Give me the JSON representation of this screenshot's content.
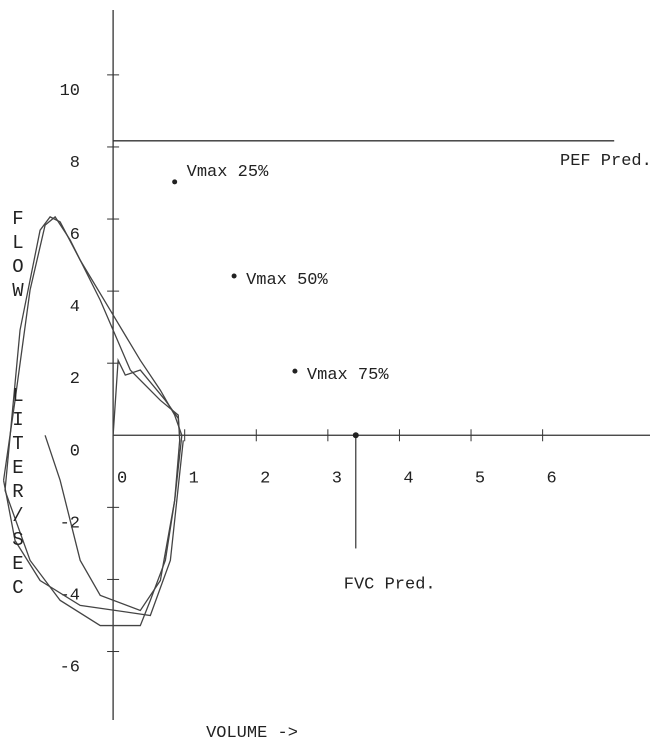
{
  "chart_data": {
    "type": "line",
    "xlabel": "VOLUME ->",
    "ylabel": [
      "FLOW",
      "LITER/SEC"
    ],
    "xlim": [
      -1.58,
      7.5
    ],
    "ylim": [
      -7.9,
      11.8
    ],
    "xticks": [
      0,
      1,
      2,
      3,
      4,
      5,
      6
    ],
    "yticks": [
      -6,
      -4,
      -2,
      0,
      2,
      4,
      6,
      8,
      10
    ],
    "series": [
      {
        "color": "#444",
        "x": [
          -1.51,
          -1.3,
          -1.02,
          -0.88,
          -0.74,
          -0.46,
          -0.04,
          0.38,
          0.66,
          0.86,
          0.96,
          0.86,
          0.73,
          0.52,
          0.38,
          -0.18,
          -0.74,
          -1.16,
          -1.51
        ],
        "values": [
          -1.53,
          2.92,
          5.69,
          6.06,
          5.92,
          4.86,
          3.47,
          2.08,
          1.25,
          0.56,
          0,
          -1.81,
          -3.47,
          -4.58,
          -5.28,
          -5.28,
          -4.58,
          -3.47,
          -1.53
        ]
      },
      {
        "color": "#444",
        "x": [
          -0.95,
          -0.74,
          -0.46,
          -0.18,
          0.38,
          0.66,
          0.86,
          0.93,
          0.91,
          0.66,
          0.24,
          -0.18,
          -0.6,
          -0.81,
          -0.95,
          -1.16,
          -1.37,
          -1.53
        ],
        "values": [
          0,
          -1.25,
          -3.47,
          -4.44,
          -4.86,
          -4.03,
          -1.81,
          -0.14,
          0.56,
          0.97,
          1.81,
          3.75,
          5.42,
          6.06,
          5.83,
          4.03,
          0.97,
          -1.25
        ]
      },
      {
        "color": "#444",
        "x": [
          0,
          0.07,
          0.17,
          0.38,
          0.73,
          0.91,
          0.93
        ],
        "values": [
          0,
          2.08,
          1.67,
          1.81,
          0.97,
          0.47,
          0
        ]
      },
      {
        "color": "#444",
        "x": [
          -1.53,
          -1.37,
          -1.02,
          -0.46,
          0.52,
          0.8,
          0.98
        ],
        "values": [
          -1.25,
          -2.92,
          -4.03,
          -4.72,
          -5.0,
          -3.47,
          -0.14
        ]
      }
    ],
    "points": [
      {
        "label": "Vmax 25%",
        "x": 0.86,
        "y": 7.03
      },
      {
        "label": "Vmax 50%",
        "x": 1.69,
        "y": 4.42
      },
      {
        "label": "Vmax 75%",
        "x": 2.54,
        "y": 1.78
      }
    ],
    "pef_pred": {
      "label": "PEF Pred.",
      "y": 8.17,
      "x": [
        0,
        7.0
      ]
    },
    "fvc_pred": {
      "label": "FVC Pred.",
      "x": 3.39,
      "y": [
        0,
        -3.14
      ]
    }
  }
}
